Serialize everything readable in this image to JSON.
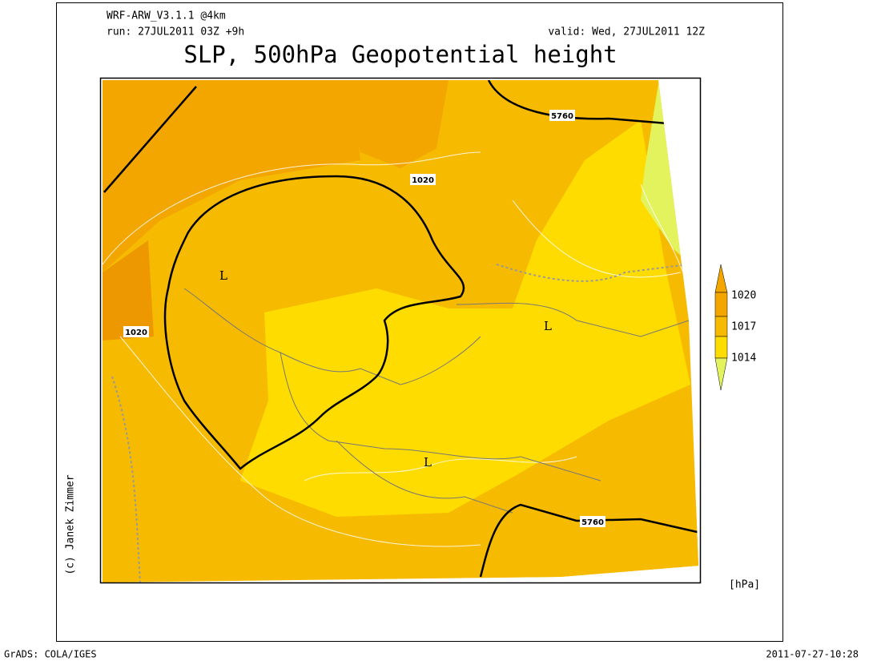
{
  "header": {
    "model": "WRF-ARW_V3.1.1 @4km",
    "run": "run: 27JUL2011 03Z +9h",
    "valid": "valid: Wed, 27JUL2011 12Z",
    "title": "SLP, 500hPa Geopotential height"
  },
  "map": {
    "contour_labels": [
      "1020",
      "1020",
      "5760",
      "5760"
    ],
    "low_labels": [
      "L",
      "L",
      "L"
    ]
  },
  "colorbar": {
    "labels": [
      "1020",
      "1017",
      "1014"
    ],
    "unit": "[hPa]"
  },
  "credit": "(c) Janek Zimmer",
  "footer": {
    "left": "GrADS: COLA/IGES",
    "right": "2011-07-27-10:28"
  }
}
